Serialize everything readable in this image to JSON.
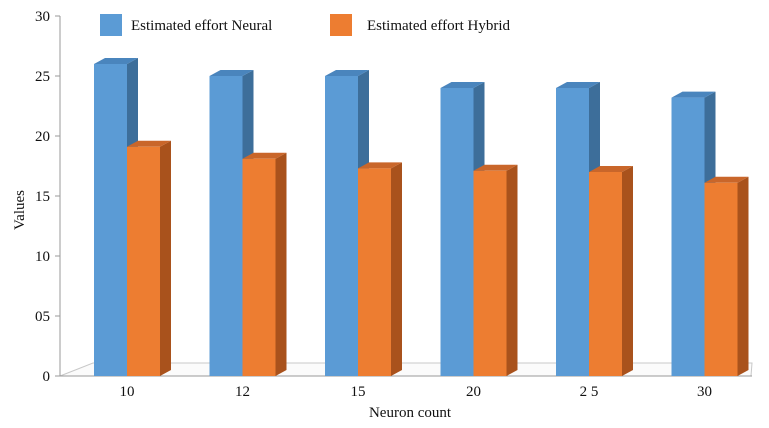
{
  "chart_data": {
    "type": "bar",
    "style": "3d-clustered-column",
    "categories": [
      "10",
      "12",
      "15",
      "20",
      "2 5",
      "30"
    ],
    "series": [
      {
        "name": "Estimated effort Neural",
        "values": [
          26,
          25,
          25,
          24,
          24,
          23.2
        ],
        "color": "#5b9bd5",
        "side_color": "#3d6e9a",
        "top_color": "#4a85bd"
      },
      {
        "name": "Estimated effort Hybrid",
        "values": [
          19.1,
          18.1,
          17.3,
          17.1,
          17.0,
          16.1
        ],
        "color": "#ed7d31",
        "side_color": "#a9521c",
        "top_color": "#c9662a"
      }
    ],
    "ylim": [
      0,
      30
    ],
    "yticks": [
      {
        "value": 0,
        "label": "0"
      },
      {
        "value": 5,
        "label": "05"
      },
      {
        "value": 10,
        "label": "10"
      },
      {
        "value": 15,
        "label": "15"
      },
      {
        "value": 20,
        "label": "20"
      },
      {
        "value": 25,
        "label": "25"
      },
      {
        "value": 30,
        "label": "30"
      }
    ],
    "xlabel": "Neuron count",
    "ylabel": "Values",
    "grid": false,
    "legend_position": "top"
  }
}
